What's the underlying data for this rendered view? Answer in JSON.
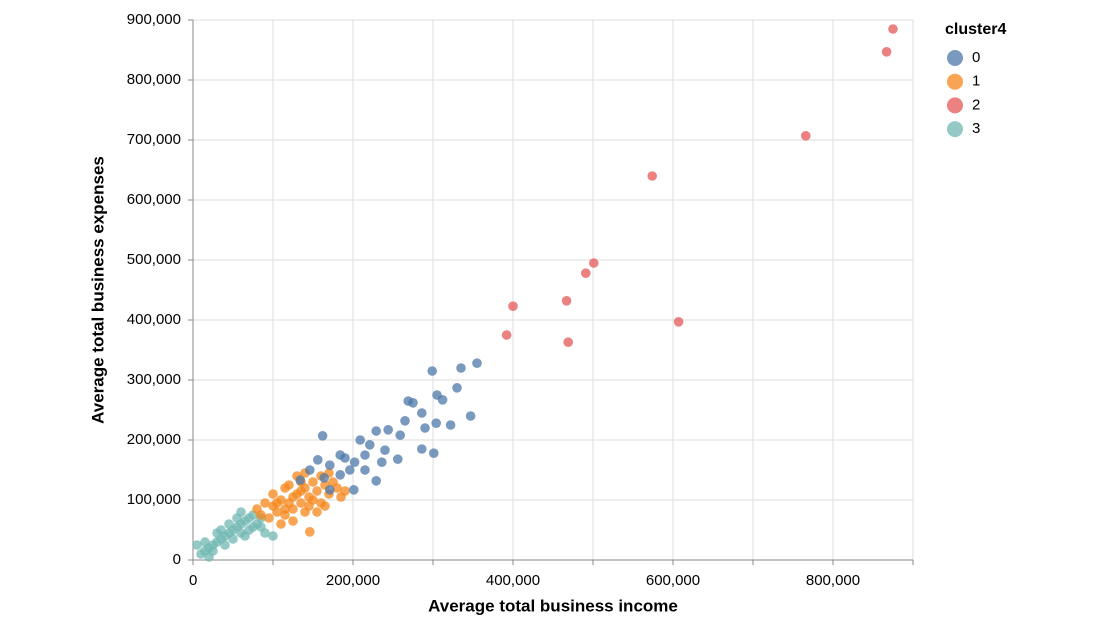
{
  "chart_data": {
    "type": "scatter",
    "x_label": "Average total business income",
    "y_label": "Average total business expenses",
    "legend_title": "cluster4",
    "legend_position": "top-right",
    "grid": true,
    "xlim": [
      0,
      900000
    ],
    "ylim": [
      0,
      900000
    ],
    "xticks": [
      {
        "value": 0,
        "label": "0"
      },
      {
        "value": 200000,
        "label": "200,000"
      },
      {
        "value": 400000,
        "label": "400,000"
      },
      {
        "value": 600000,
        "label": "600,000"
      },
      {
        "value": 800000,
        "label": "800,000"
      }
    ],
    "x_minor_ticks": [
      100000,
      300000,
      500000,
      700000,
      900000
    ],
    "yticks": [
      {
        "value": 0,
        "label": "0"
      },
      {
        "value": 100000,
        "label": "100,000"
      },
      {
        "value": 200000,
        "label": "200,000"
      },
      {
        "value": 300000,
        "label": "300,000"
      },
      {
        "value": 400000,
        "label": "400,000"
      },
      {
        "value": 500000,
        "label": "500,000"
      },
      {
        "value": 600000,
        "label": "600,000"
      },
      {
        "value": 700000,
        "label": "700,000"
      },
      {
        "value": 800000,
        "label": "800,000"
      },
      {
        "value": 900000,
        "label": "900,000"
      }
    ],
    "series": [
      {
        "name": "0",
        "color": "#4c78a8",
        "x": [
          355000,
          335000,
          299000,
          330000,
          305000,
          312000,
          269000,
          275000,
          347000,
          286000,
          304000,
          322000,
          265000,
          290000,
          162000,
          301000,
          286000,
          229000,
          209000,
          256000,
          236000,
          229000,
          201000,
          184000,
          171000,
          190000,
          215000,
          146000,
          156000,
          196000,
          221000,
          240000,
          244000,
          134000,
          171000,
          184000,
          202000,
          164000,
          215000,
          259000
        ],
        "y": [
          328000,
          320000,
          315000,
          287000,
          275000,
          267000,
          265000,
          262000,
          240000,
          245000,
          228000,
          225000,
          232000,
          220000,
          207000,
          178000,
          185000,
          215000,
          200000,
          168000,
          163000,
          132000,
          117000,
          142000,
          158000,
          170000,
          175000,
          150000,
          167000,
          150000,
          192000,
          183000,
          217000,
          133000,
          117000,
          175000,
          163000,
          137000,
          150000,
          208000
        ]
      },
      {
        "name": "1",
        "color": "#f58518",
        "x": [
          100000,
          110000,
          120000,
          130000,
          140000,
          150000,
          160000,
          125000,
          135000,
          145000,
          155000,
          165000,
          170000,
          115000,
          105000,
          95000,
          90000,
          85000,
          120000,
          130000,
          140000,
          150000,
          160000,
          175000,
          180000,
          185000,
          110000,
          125000,
          140000,
          100000,
          115000,
          135000,
          145000,
          155000,
          165000,
          125000,
          135000,
          105000,
          115000,
          146000,
          80000,
          170000,
          190000
        ],
        "y": [
          90000,
          100000,
          95000,
          110000,
          120000,
          130000,
          140000,
          85000,
          95000,
          105000,
          115000,
          125000,
          110000,
          75000,
          80000,
          70000,
          95000,
          75000,
          125000,
          140000,
          145000,
          100000,
          95000,
          130000,
          120000,
          105000,
          60000,
          65000,
          80000,
          110000,
          120000,
          130000,
          90000,
          80000,
          90000,
          105000,
          115000,
          95000,
          85000,
          47000,
          85000,
          145000,
          115000
        ]
      },
      {
        "name": "2",
        "color": "#e45756",
        "x": [
          875000,
          867000,
          766000,
          574000,
          501000,
          491000,
          400000,
          467000,
          392000,
          469000,
          607000
        ],
        "y": [
          885000,
          847000,
          707000,
          640000,
          495000,
          478000,
          423000,
          432000,
          375000,
          363000,
          397000
        ]
      },
      {
        "name": "3",
        "color": "#72b7b2",
        "x": [
          5000,
          10000,
          15000,
          20000,
          25000,
          30000,
          35000,
          40000,
          45000,
          50000,
          55000,
          60000,
          65000,
          70000,
          75000,
          80000,
          85000,
          90000,
          100000,
          30000,
          40000,
          50000,
          60000,
          70000,
          45000,
          55000,
          35000,
          20000,
          25000,
          65000,
          75000,
          85000,
          15000,
          60000
        ],
        "y": [
          25000,
          10000,
          15000,
          20000,
          25000,
          30000,
          35000,
          40000,
          45000,
          50000,
          55000,
          60000,
          65000,
          70000,
          75000,
          60000,
          55000,
          45000,
          40000,
          45000,
          25000,
          35000,
          45000,
          50000,
          60000,
          70000,
          50000,
          5000,
          15000,
          40000,
          55000,
          70000,
          30000,
          80000
        ]
      }
    ]
  }
}
